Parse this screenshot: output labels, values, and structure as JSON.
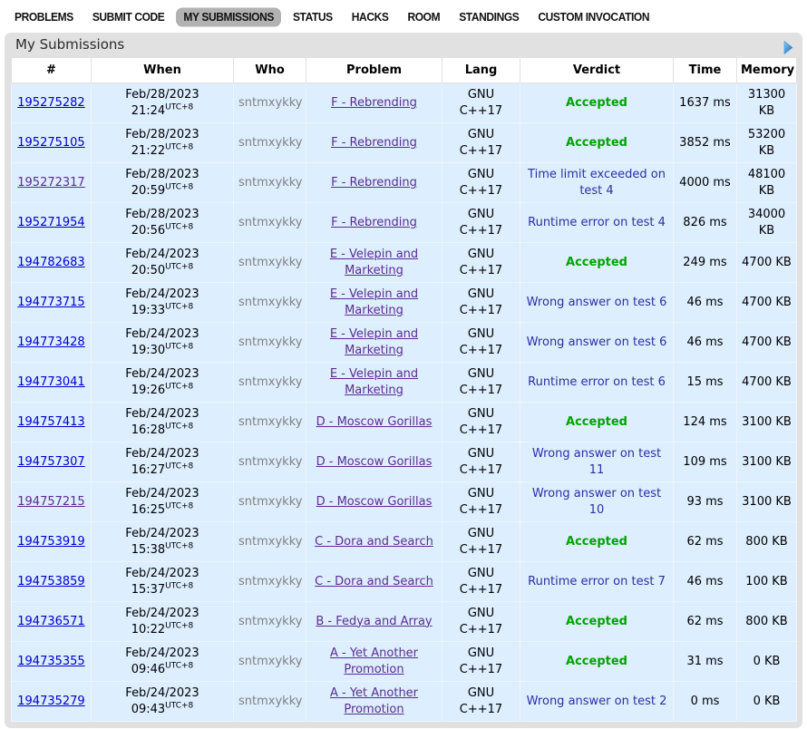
{
  "nav": {
    "tabs": [
      "PROBLEMS",
      "SUBMIT CODE",
      "MY SUBMISSIONS",
      "STATUS",
      "HACKS",
      "ROOM",
      "STANDINGS",
      "CUSTOM INVOCATION"
    ],
    "active": "MY SUBMISSIONS"
  },
  "panel": {
    "title": "My Submissions",
    "arrow_icon": "play-right-arrow"
  },
  "colors": {
    "row_highlight": "#ddeeff",
    "frame": "#e1e1e1",
    "link": "#0000cc",
    "link_visited": "#5b2d90",
    "verdict_accepted": "#00a400",
    "verdict_rejected": "#2e2ea4",
    "author_gray": "#808080",
    "arrow_blue": "#1565c0"
  },
  "table": {
    "columns": [
      "#",
      "When",
      "Who",
      "Problem",
      "Lang",
      "Verdict",
      "Time",
      "Memory"
    ],
    "timezone": "UTC+8",
    "rows": [
      {
        "id": "195275282",
        "id_visited": false,
        "date": "Feb/28/2023",
        "time": "21:24",
        "tz": "UTC+8",
        "who": "sntmxykky",
        "problem": "F - Rebrending",
        "lang": "GNU\nC++17",
        "verdict": "Accepted",
        "verdict_type": "accepted",
        "exec_time": "1637 ms",
        "memory": "31300 KB"
      },
      {
        "id": "195275105",
        "id_visited": false,
        "date": "Feb/28/2023",
        "time": "21:22",
        "tz": "UTC+8",
        "who": "sntmxykky",
        "problem": "F - Rebrending",
        "lang": "GNU\nC++17",
        "verdict": "Accepted",
        "verdict_type": "accepted",
        "exec_time": "3852 ms",
        "memory": "53200 KB"
      },
      {
        "id": "195272317",
        "id_visited": true,
        "date": "Feb/28/2023",
        "time": "20:59",
        "tz": "UTC+8",
        "who": "sntmxykky",
        "problem": "F - Rebrending",
        "lang": "GNU\nC++17",
        "verdict": "Time limit exceeded on test 4",
        "verdict_type": "rejected",
        "exec_time": "4000 ms",
        "memory": "48100 KB"
      },
      {
        "id": "195271954",
        "id_visited": false,
        "date": "Feb/28/2023",
        "time": "20:56",
        "tz": "UTC+8",
        "who": "sntmxykky",
        "problem": "F - Rebrending",
        "lang": "GNU\nC++17",
        "verdict": "Runtime error on test 4",
        "verdict_type": "rejected",
        "exec_time": "826 ms",
        "memory": "34000 KB"
      },
      {
        "id": "194782683",
        "id_visited": false,
        "date": "Feb/24/2023",
        "time": "20:50",
        "tz": "UTC+8",
        "who": "sntmxykky",
        "problem": "E - Velepin and Marketing",
        "lang": "GNU\nC++17",
        "verdict": "Accepted",
        "verdict_type": "accepted",
        "exec_time": "249 ms",
        "memory": "4700 KB"
      },
      {
        "id": "194773715",
        "id_visited": false,
        "date": "Feb/24/2023",
        "time": "19:33",
        "tz": "UTC+8",
        "who": "sntmxykky",
        "problem": "E - Velepin and Marketing",
        "lang": "GNU\nC++17",
        "verdict": "Wrong answer on test 6",
        "verdict_type": "rejected",
        "exec_time": "46 ms",
        "memory": "4700 KB"
      },
      {
        "id": "194773428",
        "id_visited": false,
        "date": "Feb/24/2023",
        "time": "19:30",
        "tz": "UTC+8",
        "who": "sntmxykky",
        "problem": "E - Velepin and Marketing",
        "lang": "GNU\nC++17",
        "verdict": "Wrong answer on test 6",
        "verdict_type": "rejected",
        "exec_time": "46 ms",
        "memory": "4700 KB"
      },
      {
        "id": "194773041",
        "id_visited": false,
        "date": "Feb/24/2023",
        "time": "19:26",
        "tz": "UTC+8",
        "who": "sntmxykky",
        "problem": "E - Velepin and Marketing",
        "lang": "GNU\nC++17",
        "verdict": "Runtime error on test 6",
        "verdict_type": "rejected",
        "exec_time": "15 ms",
        "memory": "4700 KB"
      },
      {
        "id": "194757413",
        "id_visited": false,
        "date": "Feb/24/2023",
        "time": "16:28",
        "tz": "UTC+8",
        "who": "sntmxykky",
        "problem": "D - Moscow Gorillas",
        "lang": "GNU\nC++17",
        "verdict": "Accepted",
        "verdict_type": "accepted",
        "exec_time": "124 ms",
        "memory": "3100 KB"
      },
      {
        "id": "194757307",
        "id_visited": false,
        "date": "Feb/24/2023",
        "time": "16:27",
        "tz": "UTC+8",
        "who": "sntmxykky",
        "problem": "D - Moscow Gorillas",
        "lang": "GNU\nC++17",
        "verdict": "Wrong answer on test 11",
        "verdict_type": "rejected",
        "exec_time": "109 ms",
        "memory": "3100 KB"
      },
      {
        "id": "194757215",
        "id_visited": true,
        "date": "Feb/24/2023",
        "time": "16:25",
        "tz": "UTC+8",
        "who": "sntmxykky",
        "problem": "D - Moscow Gorillas",
        "lang": "GNU\nC++17",
        "verdict": "Wrong answer on test 10",
        "verdict_type": "rejected",
        "exec_time": "93 ms",
        "memory": "3100 KB"
      },
      {
        "id": "194753919",
        "id_visited": false,
        "date": "Feb/24/2023",
        "time": "15:38",
        "tz": "UTC+8",
        "who": "sntmxykky",
        "problem": "C - Dora and Search",
        "lang": "GNU\nC++17",
        "verdict": "Accepted",
        "verdict_type": "accepted",
        "exec_time": "62 ms",
        "memory": "800 KB"
      },
      {
        "id": "194753859",
        "id_visited": false,
        "date": "Feb/24/2023",
        "time": "15:37",
        "tz": "UTC+8",
        "who": "sntmxykky",
        "problem": "C - Dora and Search",
        "lang": "GNU\nC++17",
        "verdict": "Runtime error on test 7",
        "verdict_type": "rejected",
        "exec_time": "46 ms",
        "memory": "100 KB"
      },
      {
        "id": "194736571",
        "id_visited": false,
        "date": "Feb/24/2023",
        "time": "10:22",
        "tz": "UTC+8",
        "who": "sntmxykky",
        "problem": "B - Fedya and Array",
        "lang": "GNU\nC++17",
        "verdict": "Accepted",
        "verdict_type": "accepted",
        "exec_time": "62 ms",
        "memory": "800 KB"
      },
      {
        "id": "194735355",
        "id_visited": false,
        "date": "Feb/24/2023",
        "time": "09:46",
        "tz": "UTC+8",
        "who": "sntmxykky",
        "problem": "A - Yet Another Promotion",
        "lang": "GNU\nC++17",
        "verdict": "Accepted",
        "verdict_type": "accepted",
        "exec_time": "31 ms",
        "memory": "0 KB"
      },
      {
        "id": "194735279",
        "id_visited": false,
        "date": "Feb/24/2023",
        "time": "09:43",
        "tz": "UTC+8",
        "who": "sntmxykky",
        "problem": "A - Yet Another Promotion",
        "lang": "GNU\nC++17",
        "verdict": "Wrong answer on test 2",
        "verdict_type": "rejected",
        "exec_time": "0 ms",
        "memory": "0 KB"
      }
    ]
  }
}
